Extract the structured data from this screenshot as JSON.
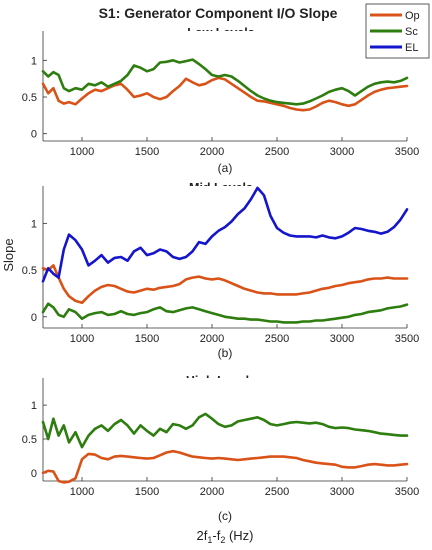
{
  "chart_data": {
    "type": "line",
    "title": "S1: Generator Component I/O Slope",
    "ylabel": "Slope",
    "xlabel_main": "2f",
    "xlabel_sub1": "1",
    "xlabel_mid": "-f",
    "xlabel_sub2": "2",
    "xlabel_tail": " (Hz)",
    "xlim": [
      700,
      3500
    ],
    "xticks": [
      1000,
      1500,
      2000,
      2500,
      3000,
      3500
    ],
    "legend": {
      "placement": "top-right",
      "entries": [
        "Op",
        "Sc",
        "EL"
      ]
    },
    "colors": {
      "Op": "#d95319",
      "Sc": "#2e7d0f",
      "EL": "#1515cc"
    },
    "panels": [
      {
        "title": "Low Levels",
        "sublabel": "(a)",
        "ylim": [
          -0.1,
          1.4
        ],
        "yticks": [
          0,
          0.5,
          1
        ],
        "series": [
          {
            "name": "Op",
            "x": [
              700,
              740,
              780,
              820,
              860,
              900,
              950,
              1000,
              1050,
              1100,
              1150,
              1200,
              1250,
              1300,
              1350,
              1400,
              1450,
              1500,
              1550,
              1600,
              1650,
              1700,
              1750,
              1800,
              1850,
              1900,
              1950,
              2000,
              2050,
              2100,
              2150,
              2200,
              2250,
              2300,
              2350,
              2400,
              2450,
              2500,
              2550,
              2600,
              2650,
              2700,
              2750,
              2800,
              2850,
              2900,
              2950,
              3000,
              3050,
              3100,
              3150,
              3200,
              3250,
              3300,
              3350,
              3400,
              3450,
              3500
            ],
            "y": [
              0.68,
              0.55,
              0.62,
              0.45,
              0.41,
              0.43,
              0.4,
              0.48,
              0.55,
              0.6,
              0.58,
              0.62,
              0.66,
              0.68,
              0.6,
              0.5,
              0.52,
              0.55,
              0.5,
              0.47,
              0.5,
              0.58,
              0.65,
              0.75,
              0.7,
              0.66,
              0.68,
              0.73,
              0.76,
              0.74,
              0.68,
              0.62,
              0.56,
              0.5,
              0.45,
              0.44,
              0.42,
              0.4,
              0.38,
              0.35,
              0.33,
              0.32,
              0.33,
              0.37,
              0.42,
              0.45,
              0.43,
              0.4,
              0.38,
              0.4,
              0.46,
              0.52,
              0.57,
              0.6,
              0.62,
              0.63,
              0.64,
              0.65
            ]
          },
          {
            "name": "Sc",
            "x": [
              700,
              740,
              780,
              820,
              860,
              900,
              950,
              1000,
              1050,
              1100,
              1150,
              1200,
              1250,
              1300,
              1350,
              1400,
              1450,
              1500,
              1550,
              1600,
              1650,
              1700,
              1750,
              1800,
              1850,
              1900,
              1950,
              2000,
              2050,
              2100,
              2150,
              2200,
              2250,
              2300,
              2350,
              2400,
              2450,
              2500,
              2550,
              2600,
              2650,
              2700,
              2750,
              2800,
              2850,
              2900,
              2950,
              3000,
              3050,
              3100,
              3150,
              3200,
              3250,
              3300,
              3350,
              3400,
              3450,
              3500
            ],
            "y": [
              0.85,
              0.78,
              0.84,
              0.8,
              0.62,
              0.58,
              0.62,
              0.6,
              0.68,
              0.66,
              0.7,
              0.64,
              0.68,
              0.72,
              0.8,
              0.93,
              0.9,
              0.85,
              0.88,
              0.97,
              0.98,
              1.0,
              0.97,
              0.99,
              1.01,
              0.95,
              0.88,
              0.8,
              0.78,
              0.8,
              0.78,
              0.72,
              0.65,
              0.58,
              0.52,
              0.48,
              0.45,
              0.43,
              0.42,
              0.41,
              0.4,
              0.41,
              0.44,
              0.48,
              0.52,
              0.57,
              0.6,
              0.62,
              0.58,
              0.52,
              0.58,
              0.64,
              0.68,
              0.7,
              0.71,
              0.7,
              0.72,
              0.76
            ]
          }
        ]
      },
      {
        "title": "Mid Levels",
        "sublabel": "(b)",
        "ylim": [
          -0.12,
          1.4
        ],
        "yticks": [
          0,
          0.5,
          1
        ],
        "series": [
          {
            "name": "Op",
            "x": [
              700,
              740,
              780,
              820,
              860,
              900,
              950,
              1000,
              1050,
              1100,
              1150,
              1200,
              1250,
              1300,
              1350,
              1400,
              1450,
              1500,
              1550,
              1600,
              1650,
              1700,
              1750,
              1800,
              1850,
              1900,
              1950,
              2000,
              2050,
              2100,
              2150,
              2200,
              2250,
              2300,
              2350,
              2400,
              2450,
              2500,
              2550,
              2600,
              2650,
              2700,
              2750,
              2800,
              2850,
              2900,
              2950,
              3000,
              3050,
              3100,
              3150,
              3200,
              3250,
              3300,
              3350,
              3400,
              3450,
              3500
            ],
            "y": [
              0.52,
              0.5,
              0.55,
              0.42,
              0.3,
              0.22,
              0.17,
              0.15,
              0.22,
              0.28,
              0.32,
              0.34,
              0.33,
              0.3,
              0.27,
              0.26,
              0.28,
              0.3,
              0.29,
              0.31,
              0.32,
              0.33,
              0.35,
              0.4,
              0.42,
              0.43,
              0.41,
              0.4,
              0.41,
              0.39,
              0.36,
              0.33,
              0.3,
              0.28,
              0.26,
              0.25,
              0.25,
              0.24,
              0.24,
              0.24,
              0.24,
              0.25,
              0.26,
              0.28,
              0.3,
              0.31,
              0.33,
              0.34,
              0.36,
              0.37,
              0.38,
              0.4,
              0.41,
              0.41,
              0.42,
              0.41,
              0.41,
              0.41
            ]
          },
          {
            "name": "Sc",
            "x": [
              700,
              740,
              780,
              820,
              860,
              900,
              950,
              1000,
              1050,
              1100,
              1150,
              1200,
              1250,
              1300,
              1350,
              1400,
              1450,
              1500,
              1550,
              1600,
              1650,
              1700,
              1750,
              1800,
              1850,
              1900,
              1950,
              2000,
              2050,
              2100,
              2150,
              2200,
              2250,
              2300,
              2350,
              2400,
              2450,
              2500,
              2550,
              2600,
              2650,
              2700,
              2750,
              2800,
              2850,
              2900,
              2950,
              3000,
              3050,
              3100,
              3150,
              3200,
              3250,
              3300,
              3350,
              3400,
              3450,
              3500
            ],
            "y": [
              0.05,
              0.14,
              0.1,
              0.02,
              0.0,
              0.08,
              0.05,
              -0.02,
              0.02,
              0.04,
              0.05,
              0.02,
              0.03,
              0.06,
              0.03,
              0.02,
              0.04,
              0.05,
              0.08,
              0.1,
              0.06,
              0.05,
              0.07,
              0.09,
              0.1,
              0.08,
              0.06,
              0.04,
              0.02,
              0.0,
              -0.01,
              -0.02,
              -0.02,
              -0.03,
              -0.03,
              -0.04,
              -0.05,
              -0.05,
              -0.06,
              -0.06,
              -0.06,
              -0.05,
              -0.05,
              -0.04,
              -0.04,
              -0.03,
              -0.02,
              -0.01,
              0.0,
              0.02,
              0.03,
              0.05,
              0.06,
              0.07,
              0.09,
              0.1,
              0.11,
              0.13
            ]
          },
          {
            "name": "EL",
            "x": [
              700,
              740,
              780,
              820,
              860,
              900,
              950,
              1000,
              1050,
              1100,
              1150,
              1200,
              1250,
              1300,
              1350,
              1400,
              1450,
              1500,
              1550,
              1600,
              1650,
              1700,
              1750,
              1800,
              1850,
              1900,
              1950,
              2000,
              2050,
              2100,
              2150,
              2200,
              2250,
              2300,
              2350,
              2400,
              2450,
              2500,
              2550,
              2600,
              2650,
              2700,
              2750,
              2800,
              2850,
              2900,
              2950,
              3000,
              3050,
              3100,
              3150,
              3200,
              3250,
              3300,
              3350,
              3400,
              3450,
              3500
            ],
            "y": [
              0.38,
              0.52,
              0.46,
              0.42,
              0.72,
              0.88,
              0.82,
              0.72,
              0.55,
              0.6,
              0.66,
              0.58,
              0.63,
              0.64,
              0.6,
              0.7,
              0.74,
              0.66,
              0.68,
              0.72,
              0.7,
              0.64,
              0.62,
              0.64,
              0.7,
              0.8,
              0.78,
              0.86,
              0.92,
              0.96,
              1.02,
              1.1,
              1.16,
              1.26,
              1.38,
              1.3,
              1.08,
              0.95,
              0.9,
              0.87,
              0.86,
              0.86,
              0.86,
              0.85,
              0.87,
              0.85,
              0.84,
              0.86,
              0.9,
              0.95,
              0.94,
              0.92,
              0.91,
              0.89,
              0.91,
              0.96,
              1.04,
              1.15
            ]
          }
        ]
      },
      {
        "title": "High Levels",
        "sublabel": "(c)",
        "ylim": [
          -0.12,
          1.4
        ],
        "yticks": [
          0,
          0.5,
          1
        ],
        "series": [
          {
            "name": "Op",
            "x": [
              700,
              740,
              780,
              820,
              860,
              900,
              950,
              1000,
              1050,
              1100,
              1150,
              1200,
              1250,
              1300,
              1350,
              1400,
              1450,
              1500,
              1550,
              1600,
              1650,
              1700,
              1750,
              1800,
              1850,
              1900,
              1950,
              2000,
              2050,
              2100,
              2150,
              2200,
              2250,
              2300,
              2350,
              2400,
              2450,
              2500,
              2550,
              2600,
              2650,
              2700,
              2750,
              2800,
              2850,
              2900,
              2950,
              3000,
              3050,
              3100,
              3150,
              3200,
              3250,
              3300,
              3350,
              3400,
              3450,
              3500
            ],
            "y": [
              0.0,
              0.03,
              0.02,
              -0.12,
              -0.14,
              -0.13,
              -0.08,
              0.2,
              0.28,
              0.27,
              0.22,
              0.2,
              0.24,
              0.25,
              0.24,
              0.23,
              0.22,
              0.21,
              0.22,
              0.26,
              0.3,
              0.32,
              0.3,
              0.27,
              0.24,
              0.23,
              0.22,
              0.21,
              0.22,
              0.21,
              0.2,
              0.19,
              0.2,
              0.21,
              0.22,
              0.23,
              0.24,
              0.24,
              0.24,
              0.23,
              0.22,
              0.19,
              0.17,
              0.15,
              0.14,
              0.13,
              0.12,
              0.09,
              0.08,
              0.08,
              0.1,
              0.12,
              0.13,
              0.12,
              0.11,
              0.11,
              0.12,
              0.13
            ]
          },
          {
            "name": "Sc",
            "x": [
              700,
              740,
              780,
              820,
              860,
              900,
              950,
              1000,
              1050,
              1100,
              1150,
              1200,
              1250,
              1300,
              1350,
              1400,
              1450,
              1500,
              1550,
              1600,
              1650,
              1700,
              1750,
              1800,
              1850,
              1900,
              1950,
              2000,
              2050,
              2100,
              2150,
              2200,
              2250,
              2300,
              2350,
              2400,
              2450,
              2500,
              2550,
              2600,
              2650,
              2700,
              2750,
              2800,
              2850,
              2900,
              2950,
              3000,
              3050,
              3100,
              3150,
              3200,
              3250,
              3300,
              3350,
              3400,
              3450,
              3500
            ],
            "y": [
              0.75,
              0.5,
              0.8,
              0.55,
              0.7,
              0.45,
              0.6,
              0.38,
              0.55,
              0.65,
              0.7,
              0.62,
              0.72,
              0.78,
              0.7,
              0.58,
              0.7,
              0.62,
              0.55,
              0.65,
              0.6,
              0.72,
              0.7,
              0.65,
              0.7,
              0.82,
              0.87,
              0.8,
              0.72,
              0.68,
              0.7,
              0.76,
              0.78,
              0.8,
              0.82,
              0.78,
              0.72,
              0.7,
              0.72,
              0.74,
              0.75,
              0.74,
              0.73,
              0.74,
              0.72,
              0.68,
              0.66,
              0.67,
              0.66,
              0.64,
              0.63,
              0.62,
              0.6,
              0.58,
              0.57,
              0.56,
              0.55,
              0.55
            ]
          }
        ]
      }
    ]
  }
}
